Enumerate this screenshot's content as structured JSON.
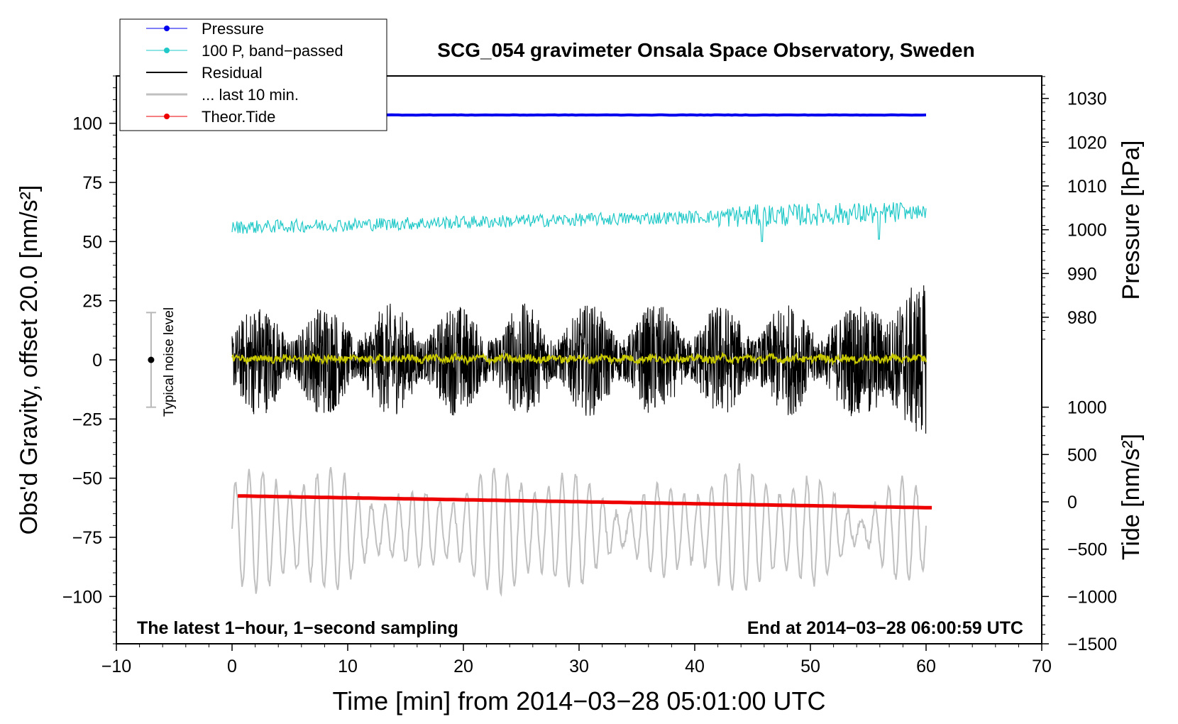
{
  "chart_data": {
    "type": "line",
    "title": "SCG_054 gravimeter Onsala Space Observatory, Sweden",
    "xlabel": "Time [min] from 2014−03−28 05:01:00 UTC",
    "ylabel_left": "Obs'd Gravity, offset 20.0 [nm/s²]",
    "ylabel_right_pressure": "Pressure [hPa]",
    "ylabel_right_tide": "Tide [nm/s²]",
    "xlim": [
      -10,
      70
    ],
    "ylim": [
      -120,
      120
    ],
    "x_ticks": [
      {
        "v": -10,
        "label": "−10"
      },
      {
        "v": 0,
        "label": "0"
      },
      {
        "v": 10,
        "label": "10"
      },
      {
        "v": 20,
        "label": "20"
      },
      {
        "v": 30,
        "label": "30"
      },
      {
        "v": 40,
        "label": "40"
      },
      {
        "v": 50,
        "label": "50"
      },
      {
        "v": 60,
        "label": "60"
      },
      {
        "v": 70,
        "label": "70"
      }
    ],
    "y_ticks_left": [
      {
        "v": 100,
        "label": "100"
      },
      {
        "v": 75,
        "label": "75"
      },
      {
        "v": 50,
        "label": "50"
      },
      {
        "v": 25,
        "label": "25"
      },
      {
        "v": 0,
        "label": "0"
      },
      {
        "v": -25,
        "label": "−25"
      },
      {
        "v": -50,
        "label": "−50"
      },
      {
        "v": -75,
        "label": "−75"
      },
      {
        "v": -100,
        "label": "−100"
      }
    ],
    "pressure_axis": {
      "map": {
        "p0": 1000,
        "g0": 55,
        "g_per_hpa": 1.85
      },
      "ticks": [
        {
          "v": 1030,
          "label": "1030"
        },
        {
          "v": 1020,
          "label": "1020"
        },
        {
          "v": 1010,
          "label": "1010"
        },
        {
          "v": 1000,
          "label": "1000"
        },
        {
          "v": 990,
          "label": "990"
        },
        {
          "v": 980,
          "label": "980"
        }
      ]
    },
    "tide_axis": {
      "map": {
        "t0": 0,
        "g0": -60,
        "g_per_unit": 0.04
      },
      "ticks": [
        {
          "v": 1000,
          "label": "1000"
        },
        {
          "v": 500,
          "label": "500"
        },
        {
          "v": 0,
          "label": "0"
        },
        {
          "v": -500,
          "label": "−500"
        },
        {
          "v": -1000,
          "label": "−1000"
        },
        {
          "v": -1500,
          "label": "−1500"
        }
      ]
    },
    "series": [
      {
        "name": "Pressure",
        "color": "#0000ee",
        "x_range": [
          0,
          60
        ],
        "level": 103.5
      },
      {
        "name": "100 P, band−passed",
        "color": "#20c8c8",
        "x_range": [
          0,
          60
        ],
        "start": 56,
        "end": 62.5,
        "noise": 2.8
      },
      {
        "name": "Residual",
        "color": "#000000",
        "x_range": [
          0,
          60
        ],
        "center": 0,
        "amplitude": 20
      },
      {
        "name": "Yellow residual",
        "color": "#c8c800",
        "x_range": [
          0,
          60
        ],
        "center": 0.5,
        "amplitude": 2.5
      },
      {
        "name": "... last 10 min.",
        "color": "#c0c0c0",
        "x_range": [
          0,
          60
        ],
        "center": -72,
        "amplitude": 22
      },
      {
        "name": "Theor.Tide",
        "color": "#ee0000",
        "x_range": [
          0.5,
          60.5
        ],
        "start": -57.5,
        "end": -62.5
      }
    ],
    "legend": {
      "position": "top-left",
      "entries": [
        {
          "label": "Pressure",
          "color": "#0000ee",
          "marker": true
        },
        {
          "label": "100 P, band−passed",
          "color": "#20c8c8",
          "marker": true
        },
        {
          "label": "Residual",
          "color": "#000000",
          "marker": false
        },
        {
          "label": "... last 10 min.",
          "color": "#c0c0c0",
          "marker": false
        },
        {
          "label": "Theor.Tide",
          "color": "#ee0000",
          "marker": true
        }
      ]
    },
    "annotations": {
      "bottom_left": "The latest 1−hour, 1−second sampling",
      "bottom_right": "End at 2014−03−28 06:00:59 UTC",
      "noise_label": "Typical noise level",
      "noise_bar": {
        "x": -7,
        "center": 0,
        "half_range": 20
      }
    }
  }
}
